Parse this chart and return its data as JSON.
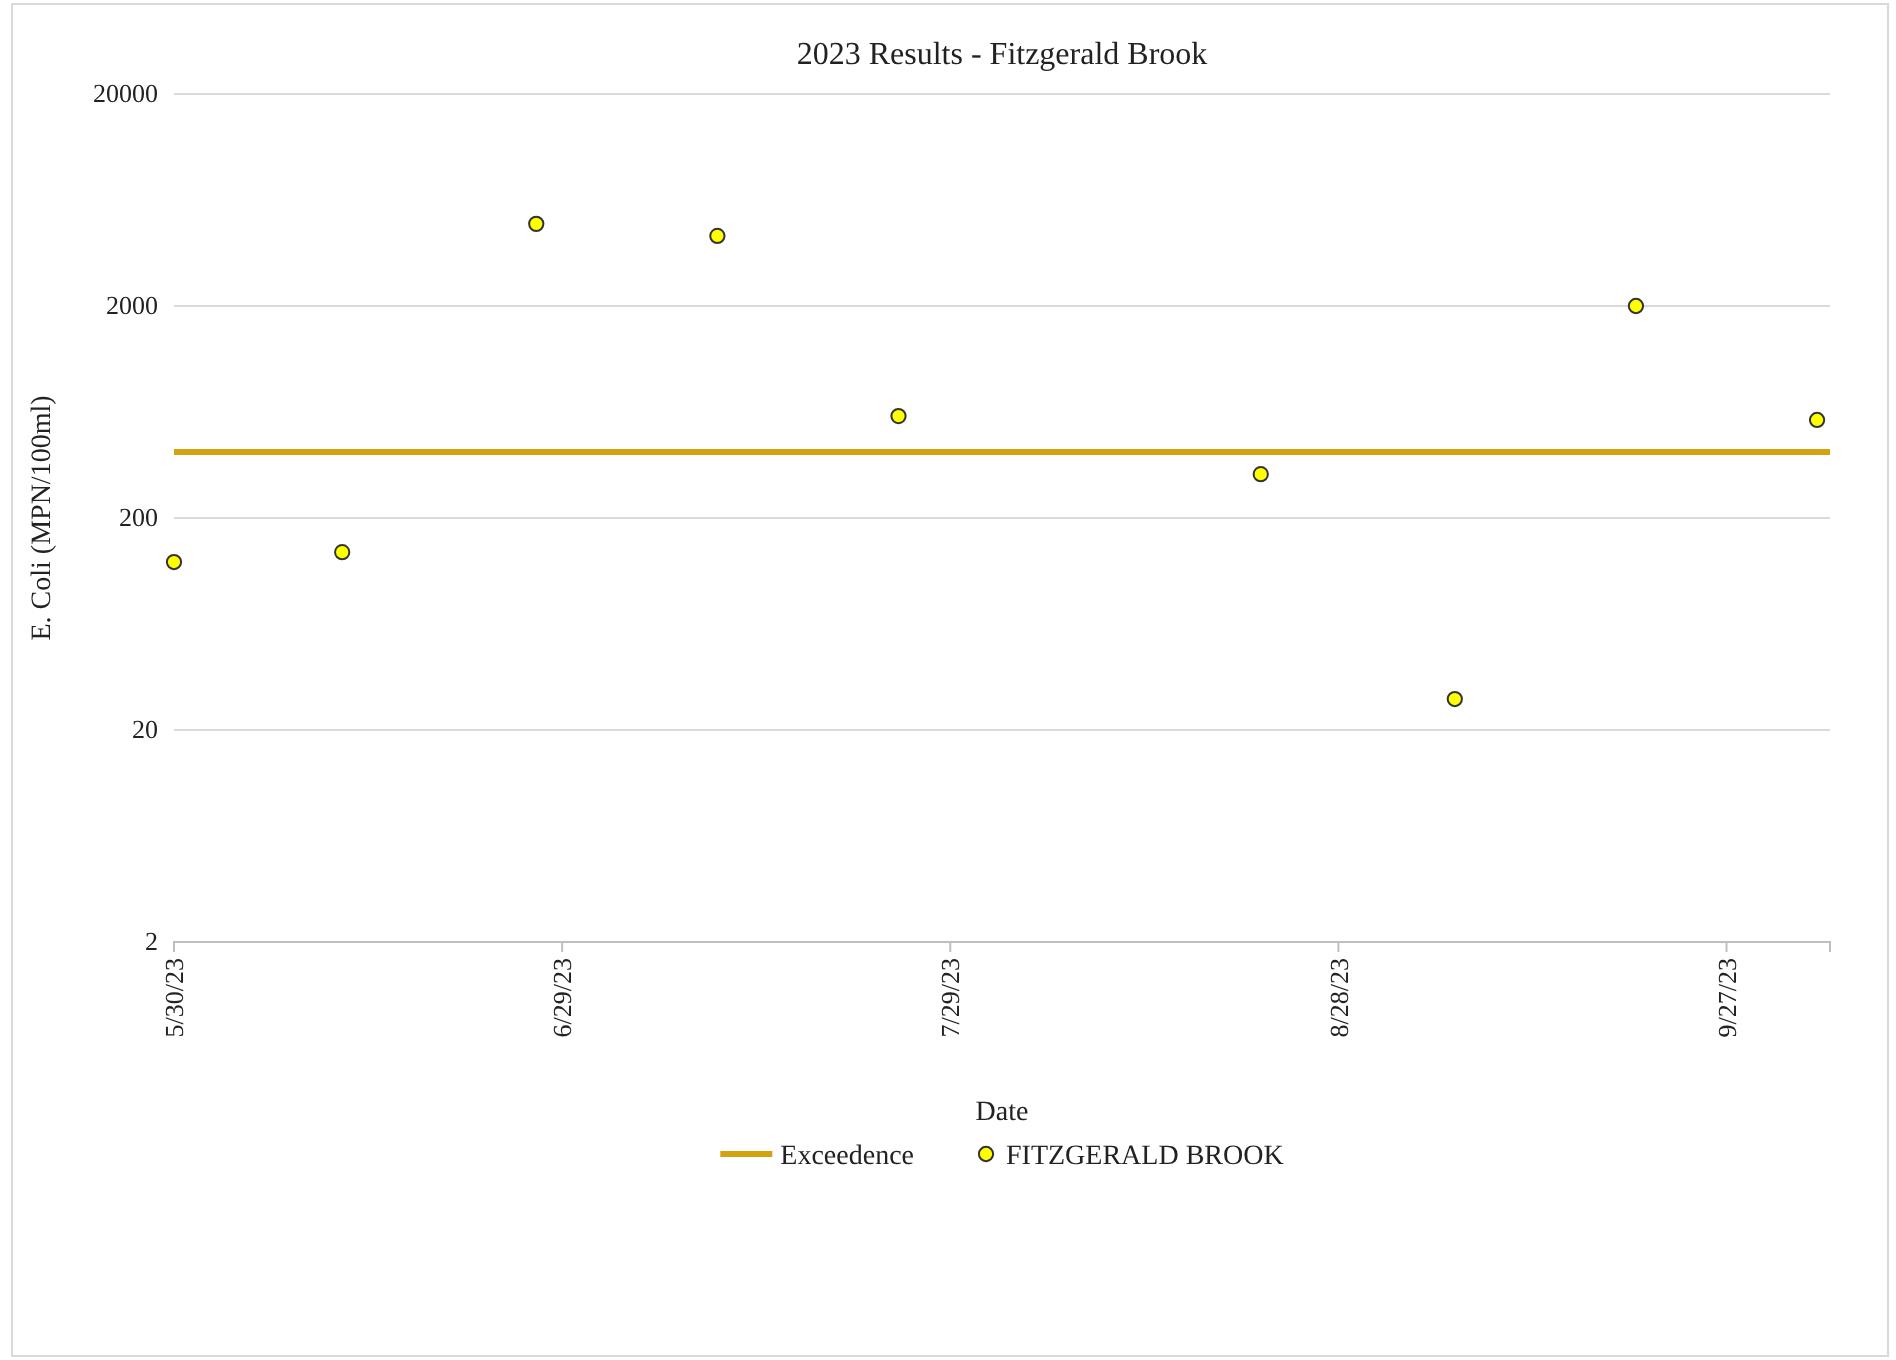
{
  "chart_data": {
    "type": "scatter",
    "title": "2023 Results - Fitzgerald Brook",
    "xlabel": "Date",
    "ylabel": "E. Coli (MPN/100ml)",
    "log": "y",
    "grid": "y",
    "legend": "bottom",
    "xlim": [
      "2023-05-30",
      "2023-10-05"
    ],
    "xticks": [
      {
        "value": "2023-05-30",
        "label": "5/30/23"
      },
      {
        "value": "2023-06-29",
        "label": "6/29/23"
      },
      {
        "value": "2023-07-29",
        "label": "7/29/23"
      },
      {
        "value": "2023-08-28",
        "label": "8/28/23"
      },
      {
        "value": "2023-09-27",
        "label": "9/27/23"
      }
    ],
    "ylim": [
      2,
      20000
    ],
    "yticks": [
      2,
      20,
      200,
      2000,
      20000
    ],
    "series": [
      {
        "name": "Exceedence",
        "type": "line",
        "marker": "none",
        "color": "#d4a20f",
        "x": [
          "2023-05-30",
          "2023-10-05"
        ],
        "values": [
          410,
          410
        ]
      },
      {
        "name": "FITZGERALD BROOK",
        "marker": "circle",
        "color": "#ffff00",
        "x": [
          "2023-05-30",
          "2023-06-12",
          "2023-06-27",
          "2023-07-11",
          "2023-07-25",
          "2023-08-22",
          "2023-09-06",
          "2023-09-20",
          "2023-10-04"
        ],
        "values": [
          124,
          138,
          4880,
          4280,
          605,
          322,
          28,
          2000,
          580
        ]
      }
    ]
  }
}
